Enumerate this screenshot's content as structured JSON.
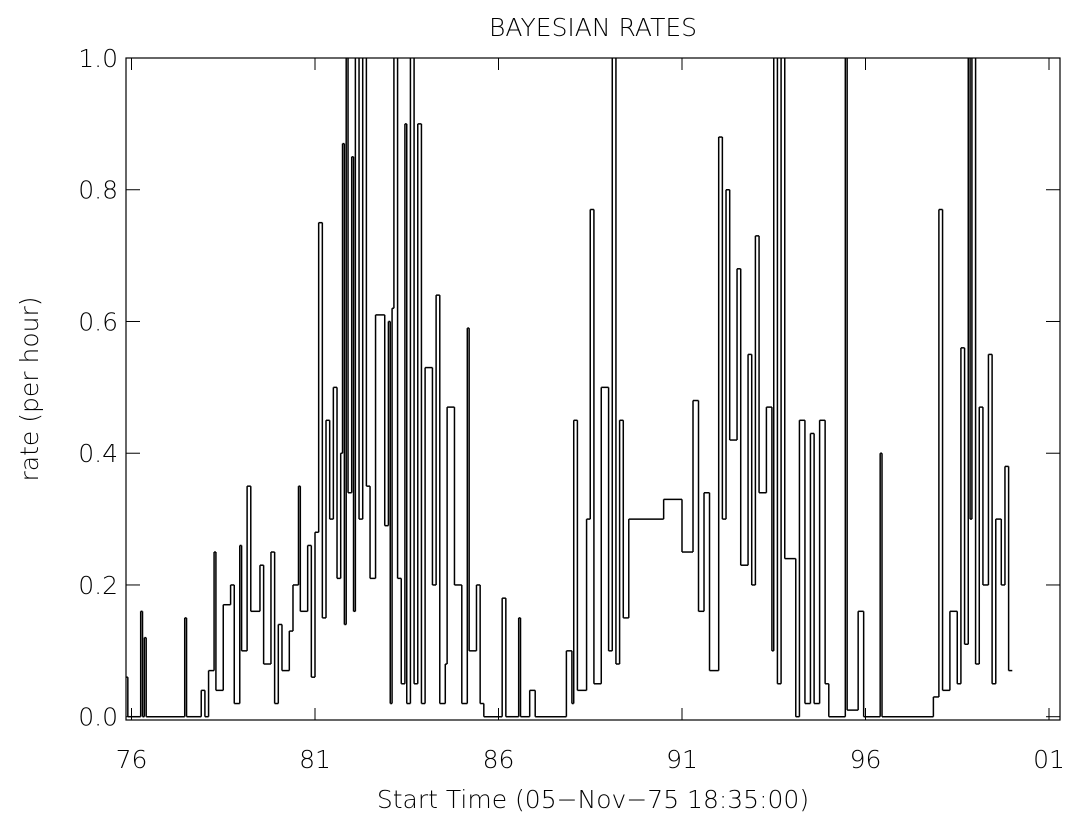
{
  "chart_data": {
    "type": "step",
    "title": "BAYESIAN RATES",
    "x_label": "Start Time (05−Nov−75 18:35:00)",
    "y_label": "rate (per hour)",
    "color": "#000000",
    "xlim": [
      1975.85,
      2001.3
    ],
    "ylim": [
      -0.005,
      1.0
    ],
    "xticks": [
      {
        "value": 1976,
        "label": "76"
      },
      {
        "value": 1981,
        "label": "81"
      },
      {
        "value": 1986,
        "label": "86"
      },
      {
        "value": 1991,
        "label": "91"
      },
      {
        "value": 1996,
        "label": "96"
      },
      {
        "value": 2001,
        "label": "01"
      }
    ],
    "yticks": [
      {
        "value": 0,
        "label": "0.0"
      },
      0.2,
      0.4,
      0.6,
      0.8,
      {
        "value": 1,
        "label": "1.0"
      }
    ],
    "x": [
      1975.85,
      1975.9,
      1976.25,
      1976.3,
      1976.35,
      1976.4,
      1977.45,
      1977.5,
      1977.9,
      1978.0,
      1978.1,
      1978.25,
      1978.3,
      1978.5,
      1978.7,
      1978.8,
      1978.95,
      1979.0,
      1979.15,
      1979.25,
      1979.5,
      1979.6,
      1979.8,
      1979.9,
      1980.0,
      1980.1,
      1980.3,
      1980.4,
      1980.55,
      1980.6,
      1980.8,
      1980.9,
      1981.0,
      1981.1,
      1981.2,
      1981.3,
      1981.4,
      1981.5,
      1981.6,
      1981.7,
      1981.75,
      1981.8,
      1981.85,
      1981.9,
      1982.0,
      1982.05,
      1982.1,
      1982.2,
      1982.3,
      1982.4,
      1982.5,
      1982.65,
      1982.9,
      1983.0,
      1983.05,
      1983.1,
      1983.15,
      1983.25,
      1983.35,
      1983.45,
      1983.5,
      1983.6,
      1983.7,
      1983.8,
      1983.9,
      1984.0,
      1984.2,
      1984.3,
      1984.4,
      1984.55,
      1984.6,
      1984.8,
      1985.0,
      1985.15,
      1985.2,
      1985.4,
      1985.5,
      1985.6,
      1986.1,
      1986.2,
      1986.55,
      1986.6,
      1986.85,
      1987.0,
      1987.85,
      1988.0,
      1988.05,
      1988.15,
      1988.4,
      1988.5,
      1988.6,
      1988.8,
      1989.0,
      1989.1,
      1989.2,
      1989.3,
      1989.4,
      1989.55,
      1990.5,
      1991.0,
      1991.3,
      1991.45,
      1991.6,
      1991.75,
      1992.0,
      1992.1,
      1992.2,
      1992.3,
      1992.5,
      1992.6,
      1992.8,
      1992.9,
      1993.0,
      1993.1,
      1993.3,
      1993.45,
      1993.5,
      1993.6,
      1993.7,
      1993.8,
      1994.1,
      1994.2,
      1994.35,
      1994.5,
      1994.6,
      1994.75,
      1994.9,
      1995.0,
      1995.45,
      1995.5,
      1995.8,
      1995.95,
      1996.4,
      1996.45,
      1997.85,
      1998.0,
      1998.1,
      1998.3,
      1998.5,
      1998.6,
      1998.7,
      1998.8,
      1998.85,
      1998.9,
      1999.0,
      1999.1,
      1999.2,
      1999.35,
      1999.45,
      1999.55,
      1999.7,
      1999.8,
      1999.9,
      2000.0
    ],
    "values": [
      0.06,
      0.0,
      0.16,
      0.0,
      0.12,
      0.0,
      0.15,
      0.0,
      0.04,
      0.0,
      0.07,
      0.25,
      0.04,
      0.17,
      0.2,
      0.02,
      0.26,
      0.1,
      0.35,
      0.16,
      0.23,
      0.08,
      0.25,
      0.02,
      0.14,
      0.07,
      0.13,
      0.2,
      0.35,
      0.16,
      0.26,
      0.06,
      0.28,
      0.75,
      0.15,
      0.45,
      0.3,
      0.5,
      0.21,
      0.4,
      0.87,
      0.14,
      1.2,
      0.34,
      0.85,
      0.16,
      1.2,
      0.3,
      1.2,
      0.35,
      0.21,
      0.61,
      0.29,
      0.6,
      0.02,
      0.62,
      1.2,
      0.21,
      0.05,
      0.9,
      0.02,
      1.2,
      0.05,
      0.9,
      0.02,
      0.53,
      0.2,
      0.64,
      0.02,
      0.08,
      0.47,
      0.2,
      0.02,
      0.59,
      0.1,
      0.2,
      0.02,
      0.0,
      0.18,
      0.0,
      0.15,
      0.0,
      0.04,
      0.0,
      0.1,
      0.02,
      0.45,
      0.04,
      0.3,
      0.77,
      0.05,
      0.5,
      0.1,
      1.2,
      0.08,
      0.45,
      0.15,
      0.3,
      0.33,
      0.25,
      0.48,
      0.16,
      0.34,
      0.07,
      0.88,
      0.3,
      0.8,
      0.42,
      0.68,
      0.23,
      0.55,
      0.2,
      0.73,
      0.34,
      0.47,
      0.1,
      1.2,
      0.05,
      1.2,
      0.24,
      0.0,
      0.45,
      0.02,
      0.43,
      0.02,
      0.45,
      0.05,
      0.0,
      1.2,
      0.01,
      0.16,
      0.0,
      0.4,
      0.0,
      0.03,
      0.77,
      0.04,
      0.16,
      0.05,
      0.56,
      0.11,
      1.2,
      0.3,
      1.2,
      0.08,
      0.47,
      0.2,
      0.55,
      0.05,
      0.3,
      0.2,
      0.38,
      0.07,
      0.07
    ]
  }
}
